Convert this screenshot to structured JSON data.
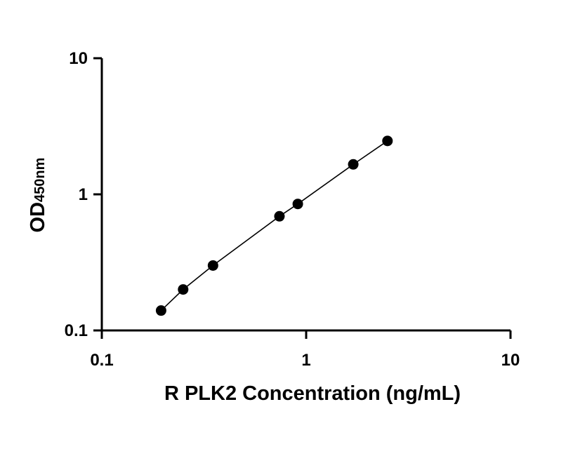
{
  "chart_data": {
    "type": "scatter",
    "xlabel": "R PLK2 Concentration (ng/mL)",
    "ylabel": "OD",
    "ylabel_subscript": "450nm",
    "x_scale": "log",
    "y_scale": "log",
    "xlim": [
      0.1,
      10
    ],
    "ylim": [
      0.1,
      10
    ],
    "x_ticks": [
      "0.1",
      "1",
      "10"
    ],
    "y_ticks": [
      "0.1",
      "1",
      "10"
    ],
    "grid": false,
    "series": [
      {
        "x": [
          0.195,
          0.25,
          0.35,
          0.74,
          0.91,
          1.7,
          2.5
        ],
        "y": [
          0.14,
          0.2,
          0.3,
          0.69,
          0.85,
          1.66,
          2.47
        ],
        "line": true,
        "marker": "circle",
        "color": "#000000"
      }
    ]
  }
}
